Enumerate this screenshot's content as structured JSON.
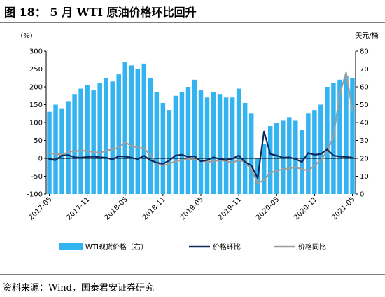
{
  "title": "图 18： 5 月 WTI 原油价格环比回升",
  "source": "资料来源：Wind，国泰君安证券研究",
  "chart_data": {
    "type": "bar+line",
    "left_axis_label": "(%)",
    "right_axis_label": "美元/桶",
    "left_ylim": [
      -100,
      300
    ],
    "left_ticks": [
      "-100",
      "-50",
      "0",
      "50",
      "100",
      "150",
      "200",
      "250",
      "300"
    ],
    "right_ylim": [
      0,
      80
    ],
    "right_ticks": [
      "0",
      "10",
      "20",
      "30",
      "40",
      "50",
      "60",
      "70",
      "80"
    ],
    "x_tick_labels": [
      "2017-05",
      "2017-11",
      "2018-05",
      "2018-11",
      "2019-05",
      "2019-11",
      "2020-05",
      "2020-11",
      "2021-05"
    ],
    "x_tick_month_index": [
      0,
      6,
      12,
      18,
      24,
      30,
      36,
      42,
      48
    ],
    "months_count": 49,
    "colors": {
      "price": "#33b3f0",
      "mom": "#0e2a5c",
      "yoy": "#9e9e9e"
    },
    "legend": [
      {
        "key": "price",
        "label": "WTI现货价格（右）"
      },
      {
        "key": "mom",
        "label": "价格环比"
      },
      {
        "key": "yoy",
        "label": "价格同比"
      }
    ],
    "series": [
      {
        "key": "price",
        "axis": "right",
        "values": [
          46,
          50,
          48,
          52,
          56,
          59,
          61,
          58,
          62,
          65,
          63,
          67,
          74,
          72,
          70,
          73,
          65,
          57,
          51,
          47,
          55,
          57,
          60,
          64,
          58,
          54,
          57,
          56,
          54,
          54,
          59,
          51,
          45,
          20,
          28,
          38,
          40,
          41,
          43,
          41,
          36,
          45,
          47,
          50,
          60,
          62,
          64,
          66,
          65
        ]
      },
      {
        "key": "mom",
        "axis": "left",
        "values": [
          -3,
          -5,
          8,
          9,
          3,
          2,
          4,
          5,
          3,
          2,
          -3,
          6,
          5,
          2,
          -2,
          7,
          -5,
          -12,
          -15,
          -6,
          8,
          10,
          4,
          6,
          -8,
          -5,
          3,
          -2,
          -5,
          -1,
          8,
          -10,
          -20,
          -55,
          75,
          12,
          8,
          2,
          3,
          -2,
          -10,
          15,
          10,
          12,
          25,
          8,
          5,
          4,
          2
        ]
      },
      {
        "key": "yoy",
        "axis": "left",
        "values": [
          15,
          12,
          10,
          18,
          20,
          22,
          20,
          18,
          15,
          22,
          25,
          30,
          45,
          35,
          30,
          28,
          10,
          -15,
          -20,
          -15,
          -8,
          -5,
          -2,
          -3,
          -5,
          -10,
          -8,
          -5,
          -8,
          -12,
          -5,
          -10,
          -30,
          -70,
          -60,
          -40,
          -35,
          -30,
          -28,
          -25,
          -30,
          -35,
          -20,
          -5,
          20,
          60,
          180,
          240,
          135
        ]
      }
    ]
  }
}
